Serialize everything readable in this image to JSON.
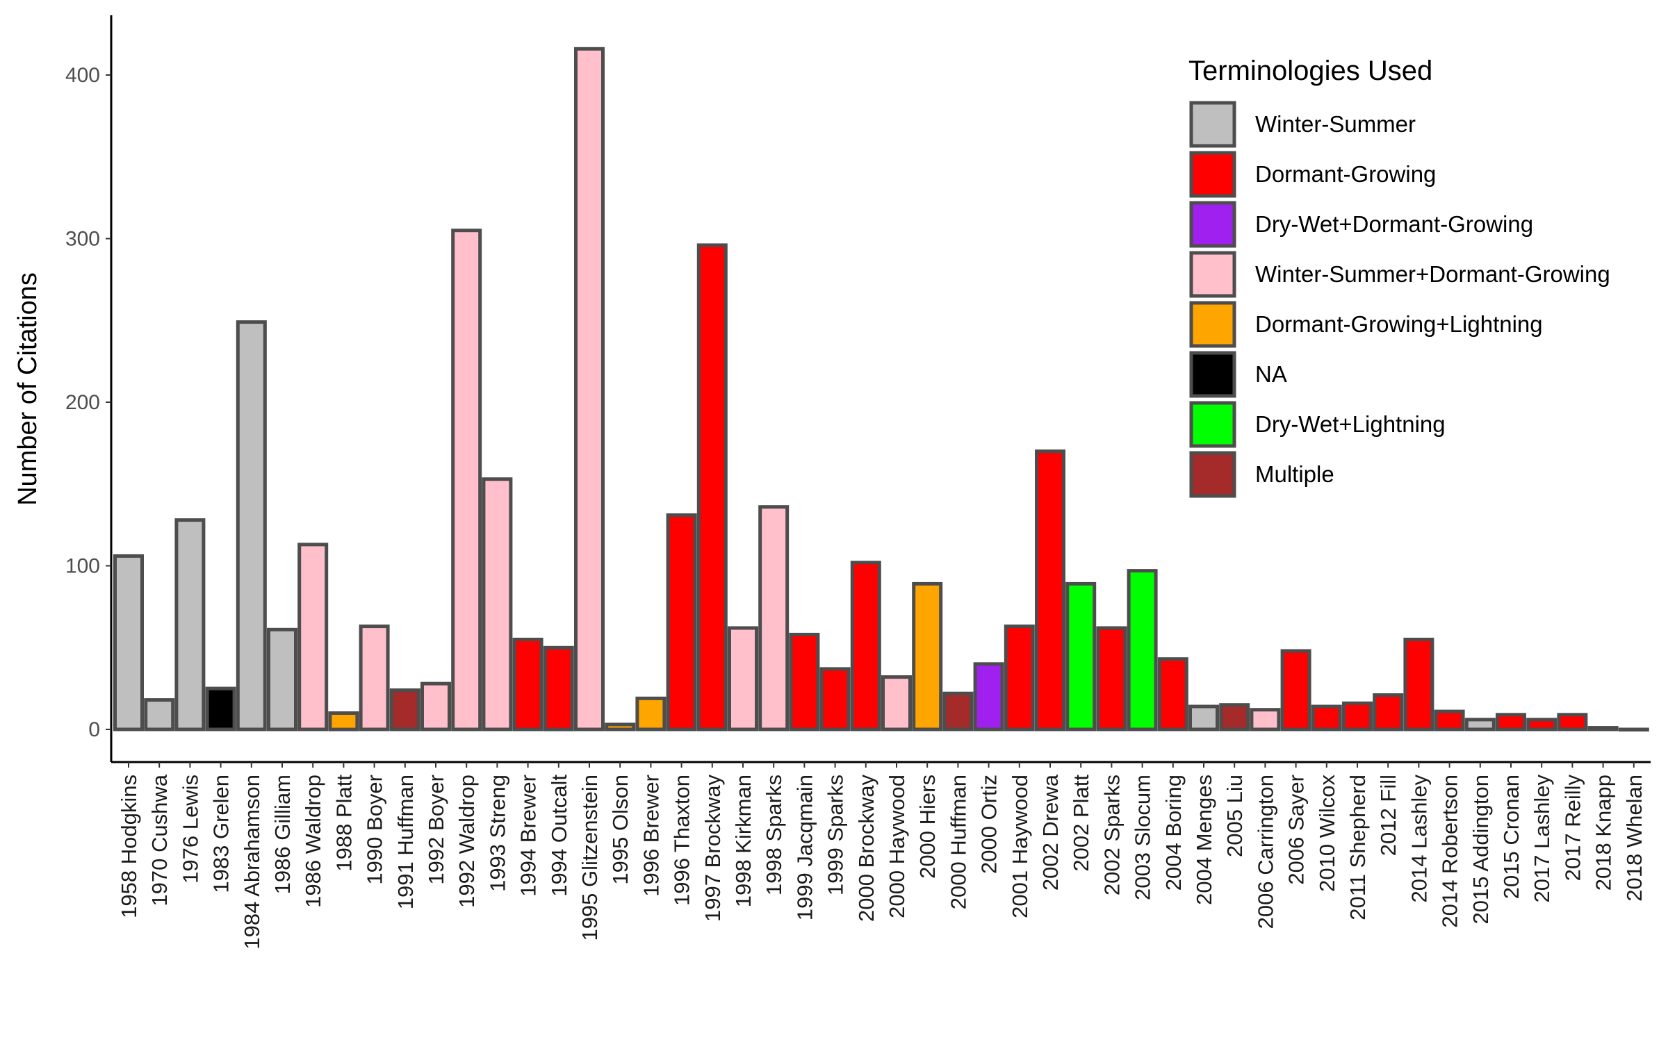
{
  "chart_data": {
    "type": "bar",
    "ylabel": "Number of Citations",
    "xlabel": "",
    "ylim": [
      0,
      420
    ],
    "yticks": [
      0,
      100,
      200,
      300,
      400
    ],
    "grid": false,
    "legend": {
      "title": "Terminologies Used",
      "placement": "top-right",
      "entries": [
        {
          "label": "Winter-Summer",
          "color": "#bfbfbf"
        },
        {
          "label": "Dormant-Growing",
          "color": "#ff0000"
        },
        {
          "label": "Dry-Wet+Dormant-Growing",
          "color": "#a020f0"
        },
        {
          "label": "Winter-Summer+Dormant-Growing",
          "color": "#ffc0cb"
        },
        {
          "label": "Dormant-Growing+Lightning",
          "color": "#ffa500"
        },
        {
          "label": "NA",
          "color": "#000000"
        },
        {
          "label": "Dry-Wet+Lightning",
          "color": "#00ff00"
        },
        {
          "label": "Multiple",
          "color": "#a52a2a"
        }
      ]
    },
    "bar_border_color": "#4d4d4d",
    "categories": [
      "1958 Hodgkins",
      "1970 Cushwa",
      "1976 Lewis",
      "1983 Grelen",
      "1984 Abrahamson",
      "1986 Gilliam",
      "1986 Waldrop",
      "1988 Platt",
      "1990 Boyer",
      "1991 Huffman",
      "1992 Boyer",
      "1992 Waldrop",
      "1993 Streng",
      "1994 Brewer",
      "1994 Outcalt",
      "1995 Glitzenstein",
      "1995 Olson",
      "1996 Brewer",
      "1996 Thaxton",
      "1997 Brockway",
      "1998 Kirkman",
      "1998 Sparks",
      "1999 Jacqmain",
      "1999 Sparks",
      "2000 Brockway",
      "2000 Haywood",
      "2000 Hiers",
      "2000 Huffman",
      "2000 Ortiz",
      "2001 Haywood",
      "2002 Drewa",
      "2002 Platt",
      "2002 Sparks",
      "2003 Slocum",
      "2004 Boring",
      "2004 Menges",
      "2005 Liu",
      "2006 Carrington",
      "2006 Sayer",
      "2010 Wilcox",
      "2011 Shepherd",
      "2012 Fill",
      "2014 Lashley",
      "2014 Robertson",
      "2015 Addington",
      "2015 Cronan",
      "2017 Lashley",
      "2017 Reilly",
      "2018 Knapp",
      "2018 Whelan"
    ],
    "values": [
      106,
      18,
      128,
      25,
      249,
      61,
      113,
      10,
      63,
      24,
      28,
      305,
      153,
      55,
      50,
      416,
      3,
      19,
      131,
      296,
      62,
      136,
      58,
      37,
      102,
      32,
      89,
      22,
      40,
      63,
      170,
      89,
      62,
      97,
      43,
      14,
      15,
      12,
      48,
      14,
      16,
      21,
      55,
      11,
      6,
      9,
      6,
      9,
      1,
      0
    ],
    "categories_terminology": [
      "Winter-Summer",
      "Winter-Summer",
      "Winter-Summer",
      "NA",
      "Winter-Summer",
      "Winter-Summer",
      "Winter-Summer+Dormant-Growing",
      "Dormant-Growing+Lightning",
      "Winter-Summer+Dormant-Growing",
      "Multiple",
      "Winter-Summer+Dormant-Growing",
      "Winter-Summer+Dormant-Growing",
      "Winter-Summer+Dormant-Growing",
      "Dormant-Growing",
      "Dormant-Growing",
      "Winter-Summer+Dormant-Growing",
      "Dormant-Growing+Lightning",
      "Dormant-Growing+Lightning",
      "Dormant-Growing",
      "Dormant-Growing",
      "Winter-Summer+Dormant-Growing",
      "Winter-Summer+Dormant-Growing",
      "Dormant-Growing",
      "Dormant-Growing",
      "Dormant-Growing",
      "Winter-Summer+Dormant-Growing",
      "Dormant-Growing+Lightning",
      "Multiple",
      "Dry-Wet+Dormant-Growing",
      "Dormant-Growing",
      "Dormant-Growing",
      "Dry-Wet+Lightning",
      "Dormant-Growing",
      "Dry-Wet+Lightning",
      "Dormant-Growing",
      "Winter-Summer",
      "Multiple",
      "Winter-Summer+Dormant-Growing",
      "Dormant-Growing",
      "Dormant-Growing",
      "Dormant-Growing",
      "Dormant-Growing",
      "Dormant-Growing",
      "Dormant-Growing",
      "Winter-Summer",
      "Dormant-Growing",
      "Dormant-Growing",
      "Dormant-Growing",
      "Winter-Summer",
      "Winter-Summer"
    ]
  }
}
